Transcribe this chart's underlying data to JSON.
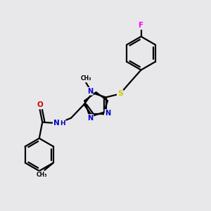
{
  "bg_color": "#e8e8eb",
  "atom_colors": {
    "C": "#000000",
    "N": "#0000cc",
    "O": "#cc0000",
    "S": "#cccc00",
    "F": "#ff00ff",
    "H": "#0000cc"
  },
  "bond_color": "#000000",
  "bond_width": 1.6
}
